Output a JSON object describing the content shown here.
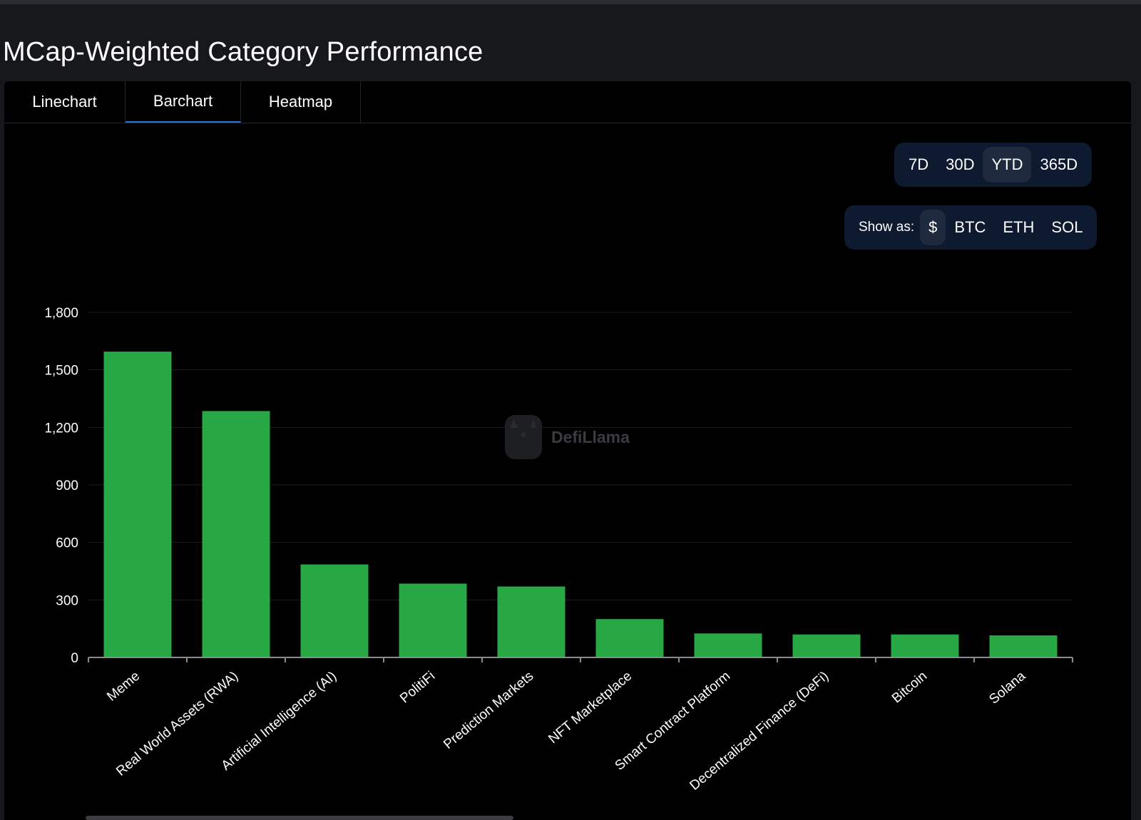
{
  "page": {
    "title": "MCap-Weighted Category Performance"
  },
  "tabs": [
    {
      "label": "Linechart",
      "active": false
    },
    {
      "label": "Barchart",
      "active": true
    },
    {
      "label": "Heatmap",
      "active": false
    }
  ],
  "period_toggle": {
    "options": [
      "7D",
      "30D",
      "YTD",
      "365D"
    ],
    "selected": "YTD"
  },
  "denomination_toggle": {
    "label": "Show as:",
    "options": [
      "$",
      "BTC",
      "ETH",
      "SOL"
    ],
    "selected": "$"
  },
  "watermark": "DefiLlama",
  "colors": {
    "bar": "#28a745",
    "background": "#000000",
    "accent": "#2f6fd6"
  },
  "chart_data": {
    "type": "bar",
    "categories": [
      "Meme",
      "Real World Assets (RWA)",
      "Artificial Intelligence (AI)",
      "PolitiFi",
      "Prediction Markets",
      "NFT Marketplace",
      "Smart Contract Platform",
      "Decentralized Finance (DeFi)",
      "Bitcoin",
      "Solana"
    ],
    "values": [
      1595,
      1285,
      485,
      385,
      370,
      200,
      125,
      120,
      120,
      115
    ],
    "ylim": [
      0,
      1800
    ],
    "yticks": [
      0,
      300,
      600,
      900,
      1200,
      1500,
      1800
    ],
    "ytick_labels": [
      "0",
      "300",
      "600",
      "900",
      "1,200",
      "1,500",
      "1,800"
    ],
    "grid": true,
    "title": "",
    "xlabel": "",
    "ylabel": ""
  }
}
